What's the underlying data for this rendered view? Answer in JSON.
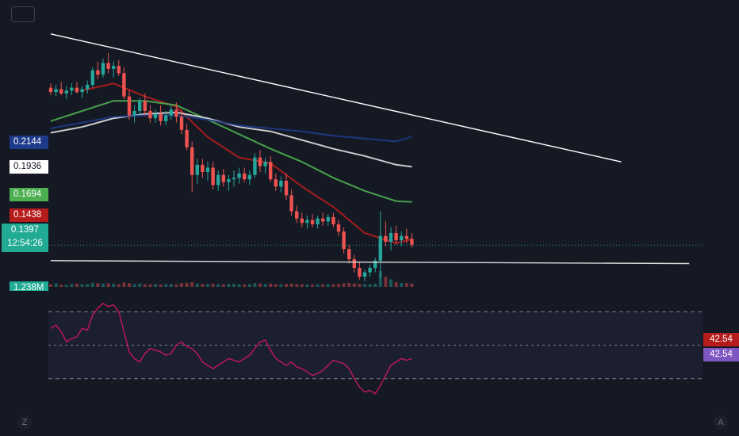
{
  "colors": {
    "background": "#151924",
    "up": "#26a69a",
    "down": "#ef5350",
    "ma_red": "#b71c1c",
    "ma_green": "#4caf50",
    "ma_white": "#e0e0e0",
    "ma_blue": "#1e3a8a",
    "rsi": "#c2185b",
    "rsi_band": "#2a2a46"
  },
  "axis_labels": {
    "ma_blue": "0.2144",
    "ma_white": "0.1936",
    "ma_green": "0.1694",
    "ma_red": "0.1438",
    "last_price": "0.1397",
    "countdown": "12:54:26",
    "volume": "1.238M",
    "rsi_value_1": "42.54",
    "rsi_value_2": "42.54"
  },
  "corner_icons": {
    "bottom_left": "Z",
    "bottom_right": "A"
  },
  "chart_data": [
    {
      "type": "candlestick",
      "title": "",
      "last_price": 0.1397,
      "ylim": [
        0.112,
        0.292
      ],
      "x_count": 70,
      "candles": [
        [
          0.248,
          0.251,
          0.243,
          0.245
        ],
        [
          0.245,
          0.25,
          0.242,
          0.247
        ],
        [
          0.247,
          0.252,
          0.243,
          0.244
        ],
        [
          0.244,
          0.249,
          0.24,
          0.246
        ],
        [
          0.246,
          0.251,
          0.243,
          0.248
        ],
        [
          0.248,
          0.252,
          0.244,
          0.245
        ],
        [
          0.245,
          0.249,
          0.241,
          0.247
        ],
        [
          0.247,
          0.253,
          0.244,
          0.25
        ],
        [
          0.25,
          0.262,
          0.248,
          0.26
        ],
        [
          0.26,
          0.266,
          0.254,
          0.257
        ],
        [
          0.257,
          0.268,
          0.255,
          0.265
        ],
        [
          0.265,
          0.272,
          0.258,
          0.261
        ],
        [
          0.261,
          0.266,
          0.255,
          0.263
        ],
        [
          0.263,
          0.267,
          0.256,
          0.258
        ],
        [
          0.258,
          0.262,
          0.24,
          0.242
        ],
        [
          0.242,
          0.246,
          0.226,
          0.229
        ],
        [
          0.229,
          0.236,
          0.224,
          0.232
        ],
        [
          0.232,
          0.241,
          0.229,
          0.239
        ],
        [
          0.239,
          0.244,
          0.229,
          0.232
        ],
        [
          0.232,
          0.236,
          0.224,
          0.227
        ],
        [
          0.227,
          0.233,
          0.224,
          0.23
        ],
        [
          0.23,
          0.236,
          0.222,
          0.225
        ],
        [
          0.225,
          0.232,
          0.222,
          0.229
        ],
        [
          0.229,
          0.237,
          0.226,
          0.233
        ],
        [
          0.233,
          0.238,
          0.224,
          0.228
        ],
        [
          0.228,
          0.233,
          0.216,
          0.219
        ],
        [
          0.219,
          0.223,
          0.205,
          0.207
        ],
        [
          0.207,
          0.211,
          0.176,
          0.188
        ],
        [
          0.188,
          0.199,
          0.182,
          0.195
        ],
        [
          0.195,
          0.199,
          0.186,
          0.19
        ],
        [
          0.19,
          0.197,
          0.184,
          0.193
        ],
        [
          0.193,
          0.197,
          0.178,
          0.181
        ],
        [
          0.181,
          0.191,
          0.177,
          0.188
        ],
        [
          0.188,
          0.192,
          0.18,
          0.183
        ],
        [
          0.183,
          0.188,
          0.177,
          0.185
        ],
        [
          0.185,
          0.191,
          0.18,
          0.186
        ],
        [
          0.186,
          0.193,
          0.182,
          0.189
        ],
        [
          0.189,
          0.193,
          0.183,
          0.185
        ],
        [
          0.185,
          0.191,
          0.181,
          0.188
        ],
        [
          0.188,
          0.203,
          0.186,
          0.2
        ],
        [
          0.2,
          0.205,
          0.19,
          0.194
        ],
        [
          0.194,
          0.2,
          0.189,
          0.197
        ],
        [
          0.197,
          0.201,
          0.183,
          0.185
        ],
        [
          0.185,
          0.189,
          0.177,
          0.18
        ],
        [
          0.18,
          0.187,
          0.176,
          0.184
        ],
        [
          0.184,
          0.189,
          0.171,
          0.174
        ],
        [
          0.174,
          0.178,
          0.16,
          0.163
        ],
        [
          0.163,
          0.167,
          0.155,
          0.158
        ],
        [
          0.158,
          0.162,
          0.152,
          0.155
        ],
        [
          0.155,
          0.16,
          0.151,
          0.157
        ],
        [
          0.157,
          0.161,
          0.152,
          0.154
        ],
        [
          0.154,
          0.16,
          0.151,
          0.158
        ],
        [
          0.158,
          0.162,
          0.153,
          0.156
        ],
        [
          0.156,
          0.161,
          0.153,
          0.159
        ],
        [
          0.159,
          0.162,
          0.152,
          0.154
        ],
        [
          0.154,
          0.157,
          0.146,
          0.149
        ],
        [
          0.149,
          0.152,
          0.134,
          0.137
        ],
        [
          0.137,
          0.14,
          0.127,
          0.13
        ],
        [
          0.13,
          0.133,
          0.121,
          0.124
        ],
        [
          0.124,
          0.128,
          0.116,
          0.118
        ],
        [
          0.118,
          0.123,
          0.115,
          0.121
        ],
        [
          0.121,
          0.126,
          0.118,
          0.124
        ],
        [
          0.124,
          0.131,
          0.121,
          0.129
        ],
        [
          0.129,
          0.163,
          0.117,
          0.146
        ],
        [
          0.146,
          0.156,
          0.139,
          0.142
        ],
        [
          0.142,
          0.152,
          0.136,
          0.148
        ],
        [
          0.148,
          0.153,
          0.14,
          0.143
        ],
        [
          0.143,
          0.149,
          0.139,
          0.146
        ],
        [
          0.146,
          0.151,
          0.141,
          0.144
        ],
        [
          0.144,
          0.148,
          0.138,
          0.14
        ]
      ],
      "series": [
        {
          "color": "#b71c1c",
          "points": [
            [
              6,
              0.246
            ],
            [
              12,
              0.251
            ],
            [
              18,
              0.242
            ],
            [
              24,
              0.235
            ],
            [
              30,
              0.214
            ],
            [
              36,
              0.2
            ],
            [
              42,
              0.196
            ],
            [
              48,
              0.18
            ],
            [
              54,
              0.166
            ],
            [
              60,
              0.148
            ],
            [
              66,
              0.141
            ],
            [
              69,
              0.1438
            ]
          ]
        },
        {
          "color": "#4caf50",
          "points": [
            [
              0,
              0.225
            ],
            [
              6,
              0.232
            ],
            [
              12,
              0.239
            ],
            [
              18,
              0.239
            ],
            [
              24,
              0.236
            ],
            [
              30,
              0.226
            ],
            [
              36,
              0.216
            ],
            [
              42,
              0.206
            ],
            [
              48,
              0.197
            ],
            [
              54,
              0.186
            ],
            [
              60,
              0.177
            ],
            [
              66,
              0.17
            ],
            [
              69,
              0.1694
            ]
          ]
        },
        {
          "color": "#e0e0e0",
          "points": [
            [
              0,
              0.217
            ],
            [
              6,
              0.221
            ],
            [
              12,
              0.227
            ],
            [
              18,
              0.23
            ],
            [
              24,
              0.231
            ],
            [
              30,
              0.227
            ],
            [
              36,
              0.221
            ],
            [
              42,
              0.218
            ],
            [
              48,
              0.212
            ],
            [
              54,
              0.206
            ],
            [
              60,
              0.201
            ],
            [
              66,
              0.195
            ],
            [
              69,
              0.1936
            ]
          ]
        },
        {
          "color": "#1e3a8a",
          "points": [
            [
              0,
              0.22
            ],
            [
              6,
              0.224
            ],
            [
              12,
              0.228
            ],
            [
              18,
              0.229
            ],
            [
              24,
              0.229
            ],
            [
              30,
              0.226
            ],
            [
              36,
              0.222
            ],
            [
              42,
              0.22
            ],
            [
              48,
              0.218
            ],
            [
              54,
              0.215
            ],
            [
              60,
              0.213
            ],
            [
              66,
              0.211
            ],
            [
              69,
              0.2144
            ]
          ]
        }
      ],
      "trendlines": [
        {
          "from": [
            0,
            0.285
          ],
          "to": [
            109,
            0.197
          ],
          "color": "#ffffff"
        },
        {
          "from": [
            0,
            0.129
          ],
          "to": [
            122,
            0.127
          ],
          "color": "#e0e0e0"
        }
      ],
      "volume": [
        40,
        55,
        35,
        30,
        45,
        50,
        38,
        42,
        60,
        55,
        48,
        52,
        45,
        40,
        65,
        55,
        45,
        50,
        40,
        38,
        42,
        35,
        40,
        45,
        38,
        55,
        60,
        70,
        50,
        45,
        42,
        48,
        40,
        38,
        42,
        45,
        40,
        38,
        42,
        55,
        50,
        45,
        48,
        40,
        38,
        45,
        50,
        42,
        40,
        38,
        35,
        40,
        38,
        42,
        40,
        45,
        55,
        60,
        50,
        45,
        40,
        42,
        48,
        230,
        150,
        110,
        70,
        60,
        55,
        50
      ],
      "volume_max": 1238000
    },
    {
      "type": "line",
      "title": "",
      "ylim": [
        10,
        80
      ],
      "bands": [
        70,
        50,
        30
      ],
      "last_value": 42.54,
      "values": [
        60,
        62,
        58,
        52,
        54,
        55,
        60,
        59,
        68,
        72,
        75,
        73,
        74,
        70,
        58,
        46,
        42,
        40,
        45,
        48,
        47,
        46,
        44,
        45,
        50,
        52,
        49,
        48,
        45,
        40,
        38,
        36,
        38,
        40,
        42,
        41,
        40,
        42,
        44,
        48,
        52,
        53,
        47,
        42,
        40,
        38,
        40,
        37,
        36,
        34,
        32,
        33,
        35,
        38,
        41,
        40,
        39,
        36,
        30,
        25,
        22,
        23,
        21,
        26,
        32,
        38,
        40,
        42,
        41,
        42
      ]
    }
  ]
}
